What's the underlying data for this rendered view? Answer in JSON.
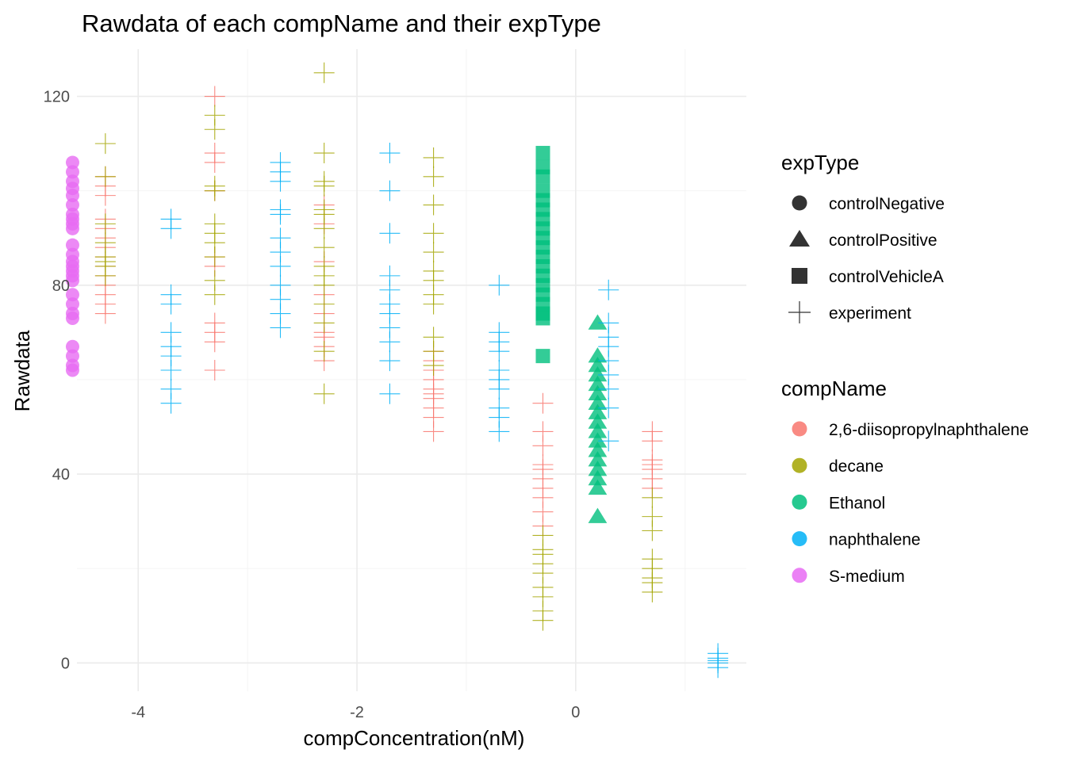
{
  "chart_data": {
    "type": "scatter",
    "title": "Rawdata of each compName and their expType",
    "xlabel": "compConcentration(nM)",
    "ylabel": "Rawdata",
    "xlim": [
      -4.56,
      1.56
    ],
    "ylim": [
      -6,
      130
    ],
    "x_ticks": [
      -4,
      -2,
      0
    ],
    "x_tick_labels": [
      "-4",
      "-2",
      "0"
    ],
    "y_ticks": [
      0,
      40,
      80,
      120
    ],
    "y_tick_labels": [
      "0",
      "40",
      "80",
      "120"
    ],
    "grid": true,
    "legend_placement": "right",
    "legends": [
      {
        "title": "expType",
        "entries": [
          {
            "label": "controlNegative",
            "shape": "circle"
          },
          {
            "label": "controlPositive",
            "shape": "triangle"
          },
          {
            "label": "controlVehicleA",
            "shape": "square"
          },
          {
            "label": "experiment",
            "shape": "cross"
          }
        ]
      },
      {
        "title": "compName",
        "entries": [
          {
            "label": "2,6-diisopropylnaphthalene",
            "color": "#F8766D"
          },
          {
            "label": "decane",
            "color": "#A3A500"
          },
          {
            "label": "Ethanol",
            "color": "#00BF7D"
          },
          {
            "label": "naphthalene",
            "color": "#00B0F6"
          },
          {
            "label": "S-medium",
            "color": "#E76BF3"
          }
        ]
      }
    ],
    "series": [
      {
        "compName": "S-medium",
        "expType": "controlNegative",
        "x": -4.6,
        "y": [
          106,
          104,
          102,
          100.5,
          99,
          97,
          95,
          94,
          93,
          92,
          88.5,
          86.5,
          85,
          84,
          83,
          82,
          81,
          78,
          76,
          74,
          73,
          67,
          65,
          63,
          62
        ]
      },
      {
        "compName": "2,6-diisopropylnaphthalene",
        "expType": "experiment",
        "x": -4.3,
        "y": [
          103,
          101,
          99,
          94,
          92,
          90,
          88,
          86,
          84,
          82,
          80,
          78,
          76,
          74
        ]
      },
      {
        "compName": "decane",
        "expType": "experiment",
        "x": -4.3,
        "y": [
          110,
          103,
          93,
          89,
          86,
          85,
          84,
          82
        ]
      },
      {
        "compName": "naphthalene",
        "expType": "experiment",
        "x": -3.7,
        "y": [
          94,
          92,
          78,
          76,
          70,
          67,
          65,
          62,
          58,
          55
        ]
      },
      {
        "compName": "2,6-diisopropylnaphthalene",
        "expType": "experiment",
        "x": -3.3,
        "y": [
          120,
          108,
          106,
          100,
          86,
          84,
          72,
          70,
          68,
          62
        ]
      },
      {
        "compName": "decane",
        "expType": "experiment",
        "x": -3.3,
        "y": [
          116,
          113,
          101,
          100,
          93,
          91,
          89,
          86,
          81,
          78
        ]
      },
      {
        "compName": "naphthalene",
        "expType": "experiment",
        "x": -2.7,
        "y": [
          106,
          104,
          102,
          96,
          95,
          90,
          87,
          84,
          80,
          77,
          74,
          71
        ]
      },
      {
        "compName": "2,6-diisopropylnaphthalene",
        "expType": "experiment",
        "x": -2.3,
        "y": [
          97,
          93,
          85,
          78,
          74,
          70,
          69,
          67,
          64
        ]
      },
      {
        "compName": "decane",
        "expType": "experiment",
        "x": -2.3,
        "y": [
          125,
          108,
          102,
          101,
          96,
          95,
          92,
          88,
          84,
          82,
          80,
          76,
          72,
          66,
          57
        ]
      },
      {
        "compName": "naphthalene",
        "expType": "experiment",
        "x": -1.7,
        "y": [
          108,
          100,
          91,
          82,
          79,
          76,
          74,
          71,
          68,
          64,
          57
        ]
      },
      {
        "compName": "2,6-diisopropylnaphthalene",
        "expType": "experiment",
        "x": -1.3,
        "y": [
          66,
          64,
          62,
          60,
          58,
          57,
          56,
          54,
          52,
          49
        ]
      },
      {
        "compName": "decane",
        "expType": "experiment",
        "x": -1.3,
        "y": [
          107,
          103,
          97,
          91,
          87,
          83,
          81,
          78,
          76,
          69,
          66,
          63
        ]
      },
      {
        "compName": "naphthalene",
        "expType": "experiment",
        "x": -0.7,
        "y": [
          80,
          70,
          68,
          66,
          62,
          60,
          58,
          54,
          52,
          49
        ]
      },
      {
        "compName": "Ethanol",
        "expType": "controlVehicleA",
        "x": -0.3,
        "y": [
          108,
          105,
          103,
          100,
          98,
          96,
          94,
          92,
          90,
          88,
          86,
          84,
          82,
          80,
          78,
          76,
          74,
          73,
          65
        ]
      },
      {
        "compName": "2,6-diisopropylnaphthalene",
        "expType": "experiment",
        "x": -0.3,
        "y": [
          55,
          49,
          46,
          42,
          41,
          39,
          37,
          35,
          32,
          29
        ]
      },
      {
        "compName": "decane",
        "expType": "experiment",
        "x": -0.3,
        "y": [
          27,
          24,
          23,
          21,
          19,
          16,
          14,
          11,
          9
        ]
      },
      {
        "compName": "Ethanol",
        "expType": "controlPositive",
        "x": 0.2,
        "y": [
          72,
          65,
          63,
          61,
          59,
          57,
          55,
          53,
          51,
          49,
          47,
          45,
          43,
          41,
          39,
          37,
          31
        ]
      },
      {
        "compName": "naphthalene",
        "expType": "experiment",
        "x": 0.3,
        "y": [
          79,
          72,
          69,
          67,
          64,
          61,
          58,
          54,
          47
        ]
      },
      {
        "compName": "2,6-diisopropylnaphthalene",
        "expType": "experiment",
        "x": 0.7,
        "y": [
          49,
          47,
          43,
          42,
          41,
          39,
          37
        ]
      },
      {
        "compName": "decane",
        "expType": "experiment",
        "x": 0.7,
        "y": [
          35,
          31,
          28,
          22,
          20,
          18,
          17,
          15
        ]
      },
      {
        "compName": "naphthalene",
        "expType": "experiment",
        "x": 1.3,
        "y": [
          2,
          1,
          0.5,
          0,
          -1
        ]
      }
    ]
  }
}
